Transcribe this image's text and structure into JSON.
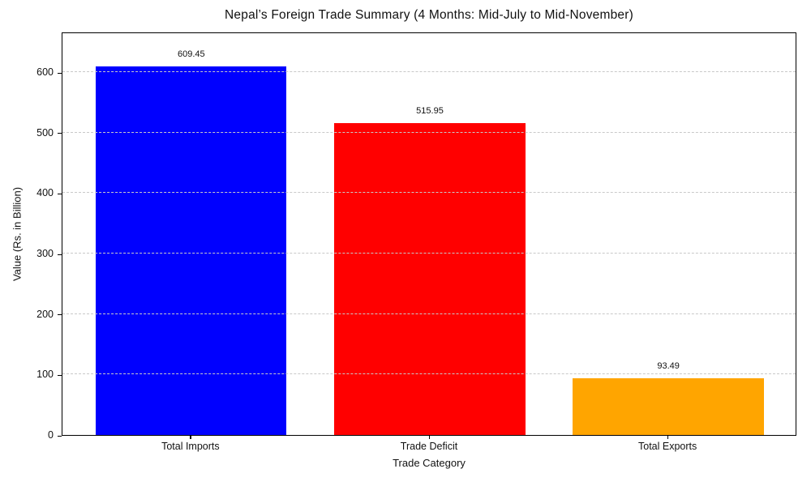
{
  "figure": {
    "background": "#ffffff",
    "text_color": "#111111"
  },
  "chart_data": {
    "type": "bar",
    "title": "Nepal’s Foreign Trade Summary (4 Months: Mid-July to Mid-November)",
    "xlabel": "Trade Category",
    "ylabel": "Value (Rs. in Billion)",
    "categories": [
      "Total Imports",
      "Trade Deficit",
      "Total Exports"
    ],
    "values": [
      609.45,
      515.95,
      93.49
    ],
    "value_labels": [
      "609.45",
      "515.95",
      "93.49"
    ],
    "bar_colors": [
      "#0000ff",
      "#ff0000",
      "#ffa500"
    ],
    "bar_width_fraction": 0.8,
    "yticks": [
      "0",
      "100",
      "200",
      "300",
      "400",
      "500",
      "600"
    ],
    "ytick_values": [
      0,
      100,
      200,
      300,
      400,
      500,
      600
    ],
    "ylim": [
      0,
      667
    ],
    "grid": {
      "axis": "y",
      "style": "dashed",
      "color": "#c9c9c9",
      "drawn_over_bars": true
    },
    "legend": "none"
  }
}
